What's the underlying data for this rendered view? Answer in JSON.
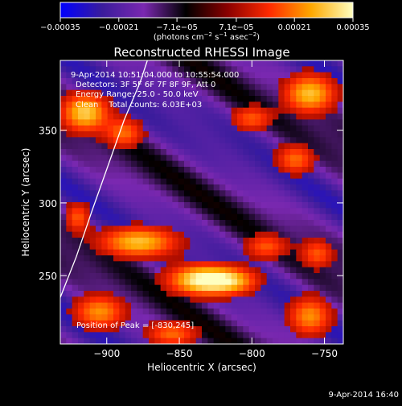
{
  "chart_data": {
    "type": "heatmap",
    "title": "Reconstructed RHESSI Image",
    "xlabel": "Heliocentric X (arcsec)",
    "ylabel": "Heliocentric Y (arcsec)",
    "xlim": [
      -932,
      -737
    ],
    "ylim": [
      203,
      398
    ],
    "x_ticks": [
      -900,
      -850,
      -800,
      -750
    ],
    "x_tick_labels": [
      "−900",
      "−850",
      "−800",
      "−750"
    ],
    "y_ticks": [
      250,
      300,
      350
    ],
    "y_tick_labels": [
      "250",
      "300",
      "350"
    ],
    "colorbar": {
      "min": -0.00035,
      "max": 0.00035,
      "tick_values": [
        -0.00035,
        -0.00021,
        -7.1e-05,
        7.1e-05,
        0.00021,
        0.00035
      ],
      "tick_labels": [
        "−0.00035",
        "−0.00021",
        "−7.1e−05",
        "7.1e−05",
        "0.00021",
        "0.00035"
      ],
      "units_prefix": "(photons cm",
      "units_exp1": "−2",
      "units_mid": " s",
      "units_exp2": "−1",
      "units_mid2": " asec",
      "units_exp3": "−2",
      "units_suffix": ")",
      "colormap": [
        "#0000ff",
        "#3a1c9c",
        "#7a28b0",
        "#000000",
        "#8a0000",
        "#ff2a00",
        "#ffa800",
        "#ffffc0"
      ]
    },
    "annotations": [
      "9-Apr-2014 10:51:04.000 to 10:55:54.000",
      "Detectors: 3F 5F 6F 7F 8F 9F, Att 0",
      "Energy Range: 25.0 - 50.0 keV",
      "Clean    Total counts: 6.03E+03"
    ],
    "peak_label": "Position of Peak = [-830,245]",
    "peak": {
      "x": -830,
      "y": 245
    },
    "limb_curve": [
      [
        -932,
        235
      ],
      [
        -921,
        263
      ],
      [
        -910,
        295
      ],
      [
        -899,
        326
      ],
      [
        -888,
        357
      ],
      [
        -877,
        383
      ],
      [
        -872,
        398
      ]
    ],
    "sources": [
      {
        "x": -833,
        "y": 247,
        "sx": 16,
        "sy": 7,
        "amp": 1.0
      },
      {
        "x": -878,
        "y": 273,
        "sx": 18,
        "sy": 7,
        "amp": 0.75
      },
      {
        "x": -812,
        "y": 246,
        "sx": 12,
        "sy": 6,
        "amp": 0.45
      },
      {
        "x": -915,
        "y": 362,
        "sx": 11,
        "sy": 9,
        "amp": 0.8
      },
      {
        "x": -888,
        "y": 348,
        "sx": 9,
        "sy": 7,
        "amp": 0.5
      },
      {
        "x": -760,
        "y": 375,
        "sx": 12,
        "sy": 9,
        "amp": 0.75
      },
      {
        "x": -800,
        "y": 358,
        "sx": 10,
        "sy": 6,
        "amp": 0.45
      },
      {
        "x": -770,
        "y": 330,
        "sx": 9,
        "sy": 7,
        "amp": 0.5
      },
      {
        "x": -790,
        "y": 270,
        "sx": 10,
        "sy": 6,
        "amp": 0.45
      },
      {
        "x": -755,
        "y": 265,
        "sx": 8,
        "sy": 7,
        "amp": 0.45
      },
      {
        "x": -760,
        "y": 222,
        "sx": 10,
        "sy": 9,
        "amp": 0.6
      },
      {
        "x": -905,
        "y": 225,
        "sx": 12,
        "sy": 8,
        "amp": 0.6
      },
      {
        "x": -855,
        "y": 210,
        "sx": 12,
        "sy": 6,
        "amp": 0.5
      },
      {
        "x": -920,
        "y": 290,
        "sx": 6,
        "sy": 7,
        "amp": 0.45
      }
    ],
    "grid": false,
    "legend": "none"
  },
  "footer": {
    "timestamp": "9-Apr-2014 16:40"
  }
}
